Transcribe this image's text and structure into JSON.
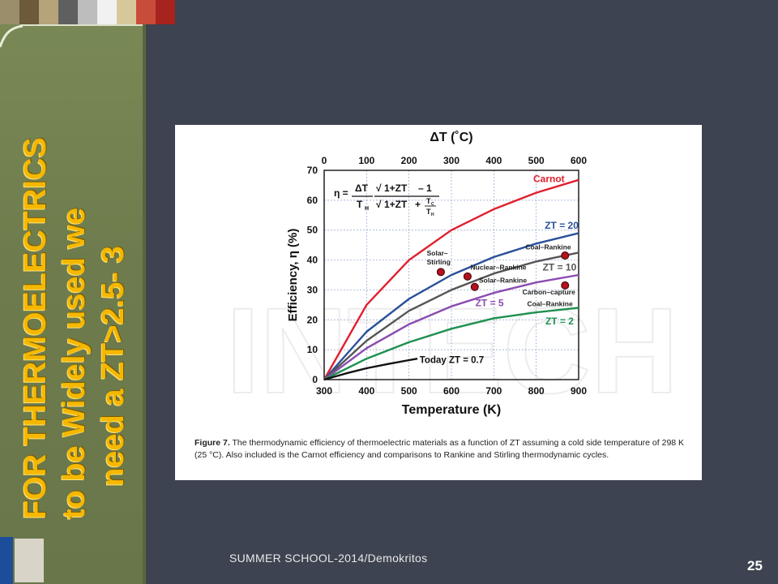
{
  "slide": {
    "title_lines": [
      "FOR THERMOELECTRICS",
      "to be Widely used we",
      "need a ZT>2.5- 3"
    ],
    "footer": "SUMMER  SCHOOL-2014/Demokritos",
    "page_number": "25",
    "colors": {
      "background": "#3d4350",
      "band": "#6f7e4f",
      "title": "#f5b800"
    }
  },
  "figure": {
    "caption_label": "Figure 7.",
    "caption_text": "The thermodynamic efficiency of thermoelectric materials as a function of ZT assuming a cold side temperature of 298 K (25 °C). Also included is the Carnot efficiency and comparisons to Rankine and Stirling thermodynamic cycles.",
    "formula": {
      "eta": "η =",
      "num": "ΔT",
      "den": "T",
      "den_sub": "H",
      "root1": "1+ZT",
      "minus": "– 1",
      "root2": "1+ZT",
      "plus": "+",
      "tc": "T",
      "tc_sub": "C",
      "th": "T",
      "th_sub": "H"
    }
  },
  "chart_data": {
    "type": "line",
    "xlabel": "Temperature (K)",
    "ylabel": "Efficiency, η (%)",
    "x2label": "ΔT (˚C)",
    "xlim": [
      300,
      900
    ],
    "ylim": [
      0,
      70
    ],
    "x_ticks": [
      300,
      400,
      500,
      600,
      700,
      800,
      900
    ],
    "x2_ticks": [
      0,
      100,
      200,
      300,
      400,
      500,
      600
    ],
    "y_ticks": [
      0,
      10,
      20,
      30,
      40,
      50,
      60,
      70
    ],
    "grid": true,
    "series": [
      {
        "name": "Carnot",
        "color": "#e0202e",
        "x": [
          300,
          400,
          500,
          600,
          700,
          800,
          900
        ],
        "y": [
          0,
          25,
          40,
          50,
          57,
          62.5,
          66.8
        ]
      },
      {
        "name": "ZT = 20",
        "color": "#2a4f9a",
        "x": [
          300,
          400,
          500,
          600,
          700,
          800,
          900
        ],
        "y": [
          0,
          16,
          27,
          35,
          41,
          45.5,
          49
        ]
      },
      {
        "name": "ZT = 10",
        "color": "#555555",
        "x": [
          300,
          400,
          500,
          600,
          700,
          800,
          900
        ],
        "y": [
          0,
          13,
          23,
          30,
          35.5,
          39.5,
          42.5
        ]
      },
      {
        "name": "ZT = 5",
        "color": "#8a4bb0",
        "x": [
          300,
          400,
          500,
          600,
          700,
          800,
          900
        ],
        "y": [
          0,
          10.5,
          18.5,
          24.5,
          29,
          32.5,
          35
        ]
      },
      {
        "name": "ZT = 2",
        "color": "#1e9050",
        "x": [
          300,
          400,
          500,
          600,
          700,
          800,
          900
        ],
        "y": [
          0,
          7,
          12.5,
          17,
          20.5,
          22.5,
          24
        ]
      },
      {
        "name": "Today ZT = 0.7",
        "color": "#111111",
        "x": [
          300,
          350,
          400,
          450,
          500,
          520
        ],
        "y": [
          0,
          2,
          3.8,
          5.2,
          6.5,
          7
        ]
      }
    ],
    "points": [
      {
        "name": "Solar–Stirling",
        "x": 575,
        "y": 36
      },
      {
        "name": "Nuclear–Rankine",
        "x": 638,
        "y": 34.5
      },
      {
        "name": "Solar–Rankine",
        "x": 655,
        "y": 31
      },
      {
        "name": "Coal–Rankine",
        "x": 868,
        "y": 41.5
      },
      {
        "name": "Carbon-capture Coal–Rankine",
        "x": 868,
        "y": 31.5
      }
    ],
    "labels": {
      "solar_stirling_1": "Solar–",
      "solar_stirling_2": "Stirling",
      "nuclear_rankine": "Nuclear–Rankine",
      "solar_rankine": "Solar–Rankine",
      "coal_rankine": "Coal–Rankine",
      "carbon_capture_1": "Carbon–capture",
      "carbon_capture_2": "Coal–Rankine",
      "watermark": "INTECH"
    }
  }
}
